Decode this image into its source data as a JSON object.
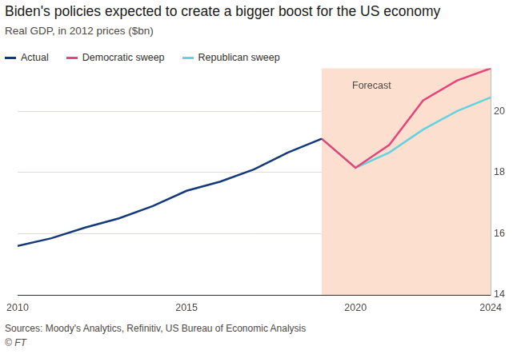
{
  "chart_data": {
    "type": "line",
    "title": "Biden's policies expected to create a bigger boost for the US economy",
    "subtitle": "Real GDP, in 2012 prices ($bn)",
    "x": [
      2010,
      2011,
      2012,
      2013,
      2014,
      2015,
      2016,
      2017,
      2018,
      2019,
      2020,
      2021,
      2022,
      2023,
      2024
    ],
    "series": [
      {
        "name": "Actual",
        "color": "#12397a",
        "values": [
          15.6,
          15.85,
          16.2,
          16.5,
          16.9,
          17.4,
          17.7,
          18.1,
          18.65,
          19.1,
          null,
          null,
          null,
          null,
          null
        ]
      },
      {
        "name": "Democratic sweep",
        "color": "#e5467a",
        "values": [
          null,
          null,
          null,
          null,
          null,
          null,
          null,
          null,
          null,
          19.1,
          18.15,
          18.9,
          20.35,
          21.0,
          21.4
        ]
      },
      {
        "name": "Republican sweep",
        "color": "#63d4df",
        "values": [
          null,
          null,
          null,
          null,
          null,
          null,
          null,
          null,
          null,
          19.1,
          18.15,
          18.65,
          19.4,
          20.0,
          20.45
        ]
      }
    ],
    "xlim": [
      2010,
      2024
    ],
    "xticks": [
      2010,
      2015,
      2020,
      2024
    ],
    "ylim": [
      14,
      21.4
    ],
    "yticks": [
      14,
      16,
      18,
      20
    ],
    "grid": true,
    "legend": "top-left",
    "shaded_region": {
      "label": "Forecast",
      "x": [
        2019,
        2024
      ]
    },
    "source": "Sources: Moody's Analytics, Refinitiv, US Bureau of Economic Analysis",
    "copyright": "© FT"
  }
}
